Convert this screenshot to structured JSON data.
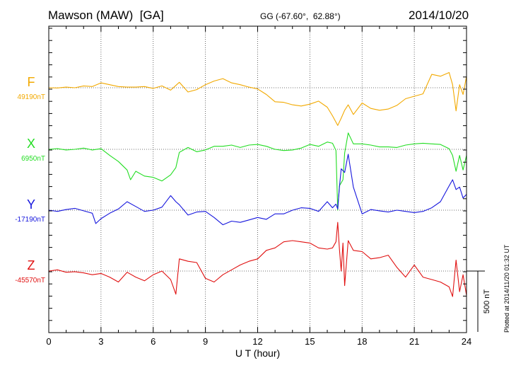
{
  "header": {
    "station": "Mawson (MAW)  [GA]",
    "coords": "GG (-67.60°,  62.88°)",
    "date": "2014/10/20"
  },
  "plotted_note": "Plotted at 2014/11/20 01:32 UT",
  "chart_data": {
    "type": "line",
    "xlabel": "U T (hour)",
    "xlim": [
      0,
      24
    ],
    "x_ticks": [
      0,
      3,
      6,
      9,
      12,
      15,
      18,
      21,
      24
    ],
    "scale_bar_label": "500 nT",
    "scale_bar_nT": 500,
    "grid": true,
    "series": [
      {
        "name": "F",
        "baseline_label": "49190nT",
        "baseline_nT": 49190,
        "color": "#f2a900",
        "x": [
          0,
          0.5,
          1,
          1.5,
          2,
          2.5,
          3,
          3.5,
          4,
          4.5,
          5,
          5.5,
          6,
          6.5,
          7,
          7.5,
          8,
          8.5,
          9,
          9.5,
          10,
          10.5,
          11,
          11.5,
          12,
          12.5,
          13,
          13.5,
          14,
          14.5,
          15,
          15.5,
          16,
          16.3,
          16.6,
          16.8,
          17,
          17.2,
          17.5,
          18,
          18.5,
          19,
          19.5,
          20,
          20.5,
          21,
          21.5,
          22,
          22.5,
          23,
          23.2,
          23.4,
          23.6,
          23.8,
          24
        ],
        "y": [
          49190,
          49188,
          49195,
          49190,
          49205,
          49200,
          49230,
          49215,
          49200,
          49195,
          49195,
          49200,
          49185,
          49205,
          49170,
          49235,
          49155,
          49175,
          49215,
          49245,
          49265,
          49230,
          49215,
          49195,
          49180,
          49135,
          49075,
          49070,
          49050,
          49040,
          49055,
          49080,
          49030,
          48960,
          48880,
          48940,
          49005,
          49050,
          48970,
          49065,
          49020,
          49005,
          49015,
          49045,
          49100,
          49120,
          49140,
          49300,
          49285,
          49315,
          49215,
          49000,
          49215,
          49135,
          49285
        ]
      },
      {
        "name": "X",
        "baseline_label": "6950nT",
        "baseline_nT": 6950,
        "color": "#22dd22",
        "x": [
          0,
          0.5,
          1,
          1.5,
          2,
          2.5,
          3,
          3.5,
          4,
          4.5,
          4.7,
          5,
          5.5,
          6,
          6.5,
          7,
          7.3,
          7.5,
          8,
          8.5,
          9,
          9.5,
          10,
          10.5,
          11,
          11.5,
          12,
          12.5,
          13,
          13.5,
          14,
          14.5,
          15,
          15.5,
          16,
          16.3,
          16.5,
          16.6,
          16.7,
          16.9,
          17,
          17.2,
          17.5,
          18,
          18.5,
          19,
          19.5,
          20,
          20.5,
          21,
          21.5,
          22,
          22.5,
          23,
          23.2,
          23.4,
          23.6,
          23.8,
          24
        ],
        "y": [
          6950,
          6955,
          6945,
          6950,
          6960,
          6945,
          6955,
          6900,
          6850,
          6780,
          6700,
          6770,
          6730,
          6720,
          6690,
          6740,
          6800,
          6925,
          6965,
          6930,
          6945,
          6975,
          6975,
          6985,
          6965,
          6985,
          6990,
          6975,
          6950,
          6940,
          6945,
          6960,
          6990,
          6975,
          7010,
          7000,
          6940,
          6450,
          6650,
          6700,
          6920,
          7085,
          6995,
          6995,
          6985,
          6970,
          6970,
          6965,
          6985,
          6995,
          7000,
          6995,
          6990,
          6955,
          6900,
          6770,
          6900,
          6780,
          6900
        ]
      },
      {
        "name": "Y",
        "baseline_label": "-17190nT",
        "baseline_nT": -17190,
        "color": "#1616dd",
        "x": [
          0,
          0.5,
          1,
          1.5,
          2,
          2.5,
          2.7,
          3,
          3.5,
          4,
          4.5,
          5,
          5.5,
          6,
          6.5,
          7,
          7.3,
          7.5,
          8,
          8.5,
          9,
          9.5,
          10,
          10.5,
          11,
          11.5,
          12,
          12.5,
          13,
          13.5,
          14,
          14.5,
          15,
          15.5,
          16,
          16.3,
          16.5,
          16.6,
          16.7,
          16.8,
          17,
          17.2,
          17.5,
          18,
          18.5,
          19,
          19.5,
          20,
          20.5,
          21,
          21.5,
          22,
          22.5,
          23,
          23.2,
          23.4,
          23.6,
          23.8,
          24
        ],
        "y": [
          -17190,
          -17200,
          -17185,
          -17175,
          -17195,
          -17215,
          -17300,
          -17260,
          -17215,
          -17180,
          -17120,
          -17160,
          -17200,
          -17190,
          -17165,
          -17070,
          -17120,
          -17145,
          -17230,
          -17205,
          -17200,
          -17250,
          -17310,
          -17280,
          -17290,
          -17270,
          -17250,
          -17265,
          -17220,
          -17220,
          -17190,
          -17170,
          -17175,
          -17200,
          -17120,
          -17170,
          -17140,
          -17180,
          -17000,
          -16850,
          -16880,
          -16730,
          -17000,
          -17220,
          -17185,
          -17195,
          -17205,
          -17190,
          -17200,
          -17210,
          -17200,
          -17170,
          -17120,
          -16990,
          -16940,
          -17020,
          -17000,
          -17090,
          -17060
        ]
      },
      {
        "name": "Z",
        "baseline_label": "-45570nT",
        "baseline_nT": -45570,
        "color": "#e01010",
        "x": [
          0,
          0.5,
          1,
          1.5,
          2,
          2.5,
          3,
          3.5,
          4,
          4.5,
          5,
          5.5,
          6,
          6.5,
          7,
          7.3,
          7.5,
          8,
          8.5,
          9,
          9.5,
          10,
          10.5,
          11,
          11.5,
          12,
          12.5,
          13,
          13.5,
          14,
          14.5,
          15,
          15.5,
          16,
          16.3,
          16.5,
          16.6,
          16.7,
          16.8,
          16.9,
          17,
          17.2,
          17.5,
          18,
          18.5,
          19,
          19.5,
          20,
          20.5,
          21,
          21.5,
          22,
          22.5,
          23,
          23.2,
          23.4,
          23.6,
          23.8,
          24
        ],
        "y": [
          -45570,
          -45560,
          -45580,
          -45575,
          -45585,
          -45600,
          -45590,
          -45620,
          -45660,
          -45580,
          -45620,
          -45650,
          -45600,
          -45570,
          -45640,
          -45760,
          -45470,
          -45490,
          -45500,
          -45630,
          -45660,
          -45600,
          -45560,
          -45520,
          -45490,
          -45470,
          -45400,
          -45380,
          -45330,
          -45320,
          -45330,
          -45340,
          -45380,
          -45390,
          -45380,
          -45330,
          -45170,
          -45390,
          -45570,
          -45340,
          -45690,
          -45320,
          -45400,
          -45410,
          -45470,
          -45460,
          -45440,
          -45540,
          -45620,
          -45520,
          -45620,
          -45640,
          -45660,
          -45700,
          -45780,
          -45480,
          -45740,
          -45600,
          -45770
        ]
      }
    ]
  }
}
